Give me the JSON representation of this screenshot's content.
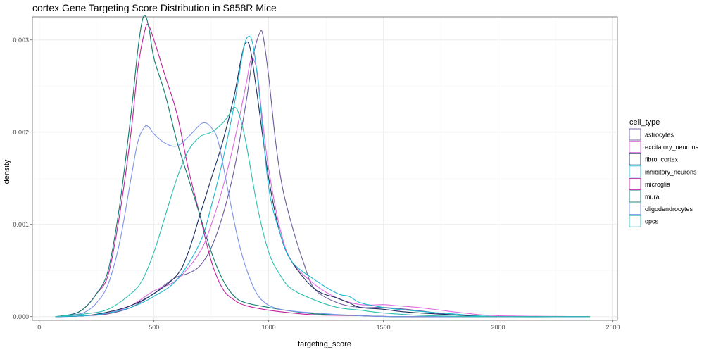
{
  "chart_data": {
    "type": "line",
    "title": "cortex Gene Targeting Score Distribution in S858R Mice",
    "xlabel": "targeting_score",
    "ylabel": "density",
    "xlim": [
      -30,
      2520
    ],
    "ylim": [
      -4e-05,
      0.00325
    ],
    "x_ticks": [
      0,
      500,
      1000,
      1500,
      2000,
      2500
    ],
    "x_tick_labels": [
      "0",
      "500",
      "1000",
      "1500",
      "2000",
      "2500"
    ],
    "y_ticks": [
      0,
      0.001,
      0.002,
      0.003
    ],
    "y_tick_labels": [
      "0.000",
      "0.001",
      "0.002",
      "0.003"
    ],
    "grid": true,
    "legend": {
      "title": "cell_type",
      "position": "right"
    },
    "series": [
      {
        "name": "astrocytes",
        "color": "#6e5a9e",
        "points": [
          [
            70,
            0
          ],
          [
            200,
            1e-05
          ],
          [
            300,
            3e-05
          ],
          [
            400,
            0.0001
          ],
          [
            500,
            0.00025
          ],
          [
            550,
            0.00035
          ],
          [
            600,
            0.00043
          ],
          [
            650,
            0.00047
          ],
          [
            700,
            0.00055
          ],
          [
            750,
            0.00075
          ],
          [
            800,
            0.0011
          ],
          [
            850,
            0.0016
          ],
          [
            900,
            0.0023
          ],
          [
            930,
            0.0028
          ],
          [
            960,
            0.00307
          ],
          [
            975,
            0.00305
          ],
          [
            1000,
            0.0026
          ],
          [
            1030,
            0.0019
          ],
          [
            1060,
            0.0014
          ],
          [
            1100,
            0.001
          ],
          [
            1150,
            0.0006
          ],
          [
            1200,
            0.0003
          ],
          [
            1300,
            0.00015
          ],
          [
            1400,
            0.0001
          ],
          [
            1500,
            0.0001
          ],
          [
            1600,
            8e-05
          ],
          [
            1700,
            5e-05
          ],
          [
            1800,
            2e-05
          ],
          [
            2000,
            0
          ],
          [
            2400,
            0
          ]
        ]
      },
      {
        "name": "excitatory_neurons",
        "color": "#de6be0",
        "points": [
          [
            70,
            0
          ],
          [
            200,
            1e-05
          ],
          [
            300,
            4e-05
          ],
          [
            400,
            0.00012
          ],
          [
            500,
            0.00028
          ],
          [
            600,
            0.0004
          ],
          [
            700,
            0.0007
          ],
          [
            750,
            0.001
          ],
          [
            800,
            0.0014
          ],
          [
            850,
            0.0019
          ],
          [
            900,
            0.0025
          ],
          [
            925,
            0.0028
          ],
          [
            950,
            0.00265
          ],
          [
            970,
            0.0022
          ],
          [
            1000,
            0.0016
          ],
          [
            1050,
            0.00095
          ],
          [
            1100,
            0.0006
          ],
          [
            1200,
            0.00035
          ],
          [
            1300,
            0.0002
          ],
          [
            1400,
            0.00013
          ],
          [
            1500,
            0.00013
          ],
          [
            1550,
            0.00012
          ],
          [
            1650,
            0.0001
          ],
          [
            1750,
            7e-05
          ],
          [
            1850,
            4e-05
          ],
          [
            2000,
            1e-05
          ],
          [
            2400,
            0
          ]
        ]
      },
      {
        "name": "fibro_cortex",
        "color": "#1a2e5e",
        "points": [
          [
            70,
            0
          ],
          [
            200,
            1e-05
          ],
          [
            300,
            5e-05
          ],
          [
            400,
            0.00012
          ],
          [
            500,
            0.00025
          ],
          [
            600,
            0.00045
          ],
          [
            650,
            0.0007
          ],
          [
            700,
            0.0011
          ],
          [
            750,
            0.0015
          ],
          [
            800,
            0.0019
          ],
          [
            850,
            0.0024
          ],
          [
            880,
            0.0028
          ],
          [
            900,
            0.00297
          ],
          [
            920,
            0.0029
          ],
          [
            950,
            0.0024
          ],
          [
            1000,
            0.0015
          ],
          [
            1050,
            0.0009
          ],
          [
            1100,
            0.0006
          ],
          [
            1200,
            0.0003
          ],
          [
            1300,
            0.0002
          ],
          [
            1350,
            0.00015
          ],
          [
            1400,
            0.0001
          ],
          [
            1500,
            8e-05
          ],
          [
            1600,
            5e-05
          ],
          [
            1800,
            2e-05
          ],
          [
            2000,
            0
          ],
          [
            2400,
            0
          ]
        ]
      },
      {
        "name": "inhibitory_neurons",
        "color": "#1ab8d1",
        "points": [
          [
            70,
            0
          ],
          [
            200,
            1e-05
          ],
          [
            300,
            4e-05
          ],
          [
            400,
            0.0001
          ],
          [
            500,
            0.00022
          ],
          [
            600,
            0.0004
          ],
          [
            700,
            0.0008
          ],
          [
            750,
            0.0012
          ],
          [
            800,
            0.0017
          ],
          [
            850,
            0.0023
          ],
          [
            890,
            0.0029
          ],
          [
            915,
            0.00304
          ],
          [
            935,
            0.0029
          ],
          [
            960,
            0.0024
          ],
          [
            1000,
            0.0014
          ],
          [
            1050,
            0.0009
          ],
          [
            1100,
            0.0006
          ],
          [
            1200,
            0.0004
          ],
          [
            1300,
            0.00025
          ],
          [
            1350,
            0.00022
          ],
          [
            1400,
            0.00015
          ],
          [
            1500,
            0.0001
          ],
          [
            1600,
            7e-05
          ],
          [
            1800,
            3e-05
          ],
          [
            2000,
            0
          ],
          [
            2400,
            0
          ]
        ]
      },
      {
        "name": "microglia",
        "color": "#c21f9e",
        "points": [
          [
            70,
            0
          ],
          [
            150,
            3e-05
          ],
          [
            200,
            0.0001
          ],
          [
            250,
            0.00025
          ],
          [
            300,
            0.00045
          ],
          [
            350,
            0.0011
          ],
          [
            400,
            0.002
          ],
          [
            430,
            0.0027
          ],
          [
            460,
            0.0031
          ],
          [
            475,
            0.00316
          ],
          [
            500,
            0.003
          ],
          [
            550,
            0.0026
          ],
          [
            600,
            0.0022
          ],
          [
            650,
            0.0016
          ],
          [
            700,
            0.0011
          ],
          [
            750,
            0.0006
          ],
          [
            800,
            0.0003
          ],
          [
            850,
            0.00018
          ],
          [
            900,
            0.00012
          ],
          [
            1000,
            7e-05
          ],
          [
            1100,
            4e-05
          ],
          [
            1200,
            2e-05
          ],
          [
            1400,
            1e-05
          ],
          [
            1600,
            0
          ],
          [
            2400,
            0
          ]
        ]
      },
      {
        "name": "mural",
        "color": "#0d7a6b",
        "points": [
          [
            70,
            0
          ],
          [
            150,
            3e-05
          ],
          [
            200,
            0.0001
          ],
          [
            250,
            0.00025
          ],
          [
            300,
            0.0005
          ],
          [
            350,
            0.0012
          ],
          [
            400,
            0.0022
          ],
          [
            430,
            0.0029
          ],
          [
            450,
            0.00322
          ],
          [
            465,
            0.00325
          ],
          [
            480,
            0.0031
          ],
          [
            500,
            0.0028
          ],
          [
            550,
            0.0024
          ],
          [
            600,
            0.0019
          ],
          [
            650,
            0.0015
          ],
          [
            700,
            0.0011
          ],
          [
            750,
            0.0007
          ],
          [
            800,
            0.0004
          ],
          [
            850,
            0.00022
          ],
          [
            900,
            0.00015
          ],
          [
            1000,
            0.0001
          ],
          [
            1100,
            6e-05
          ],
          [
            1200,
            3e-05
          ],
          [
            1400,
            1e-05
          ],
          [
            1600,
            0
          ],
          [
            2400,
            0
          ]
        ]
      },
      {
        "name": "oligodendrocytes",
        "color": "#7b93e8",
        "points": [
          [
            70,
            0
          ],
          [
            150,
            2e-05
          ],
          [
            200,
            5e-05
          ],
          [
            250,
            0.00015
          ],
          [
            300,
            0.00035
          ],
          [
            350,
            0.0008
          ],
          [
            400,
            0.0015
          ],
          [
            430,
            0.0019
          ],
          [
            460,
            0.00206
          ],
          [
            480,
            0.00205
          ],
          [
            500,
            0.00198
          ],
          [
            550,
            0.00188
          ],
          [
            600,
            0.00185
          ],
          [
            650,
            0.00195
          ],
          [
            700,
            0.00208
          ],
          [
            725,
            0.0021
          ],
          [
            750,
            0.00205
          ],
          [
            780,
            0.0019
          ],
          [
            820,
            0.0014
          ],
          [
            870,
            0.0008
          ],
          [
            920,
            0.0004
          ],
          [
            970,
            0.00018
          ],
          [
            1050,
            8e-05
          ],
          [
            1200,
            4e-05
          ],
          [
            1400,
            1e-05
          ],
          [
            1600,
            0
          ],
          [
            2400,
            0
          ]
        ]
      },
      {
        "name": "opcs",
        "color": "#2cbfae",
        "points": [
          [
            70,
            0
          ],
          [
            200,
            3e-05
          ],
          [
            300,
            8e-05
          ],
          [
            400,
            0.00025
          ],
          [
            450,
            0.0004
          ],
          [
            500,
            0.0007
          ],
          [
            550,
            0.0011
          ],
          [
            600,
            0.0015
          ],
          [
            650,
            0.0018
          ],
          [
            700,
            0.00195
          ],
          [
            750,
            0.002
          ],
          [
            800,
            0.0021
          ],
          [
            830,
            0.0022
          ],
          [
            850,
            0.00227
          ],
          [
            870,
            0.0022
          ],
          [
            900,
            0.0019
          ],
          [
            950,
            0.0012
          ],
          [
            1000,
            0.0007
          ],
          [
            1050,
            0.00045
          ],
          [
            1100,
            0.0003
          ],
          [
            1200,
            0.00018
          ],
          [
            1300,
            0.0001
          ],
          [
            1400,
            7e-05
          ],
          [
            1500,
            4e-05
          ],
          [
            1700,
            1e-05
          ],
          [
            2000,
            0
          ],
          [
            2400,
            0
          ]
        ]
      }
    ]
  }
}
